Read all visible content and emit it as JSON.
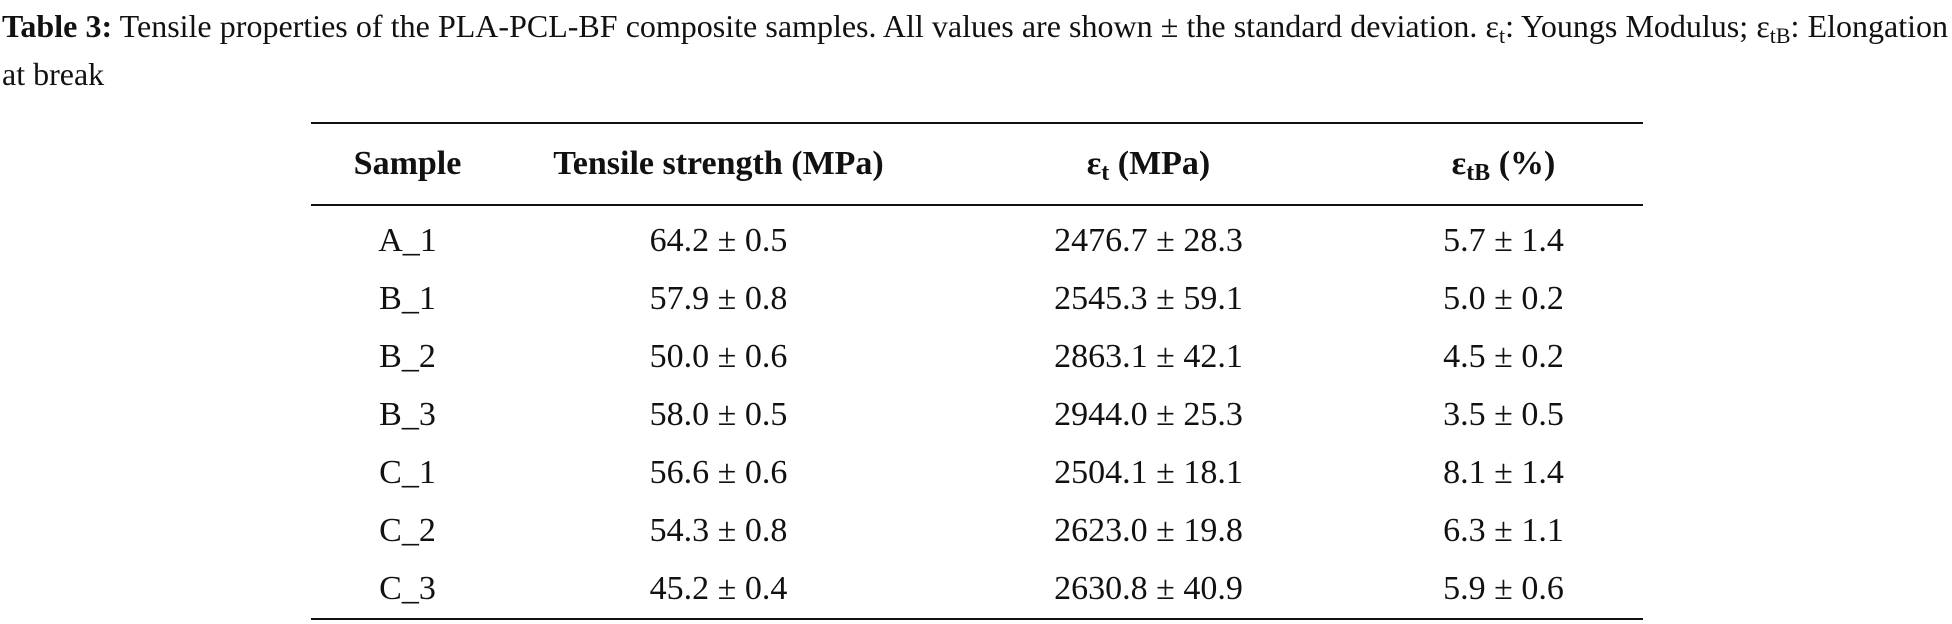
{
  "caption": {
    "label": "Table 3:",
    "text": " Tensile properties of the PLA-PCL-BF composite samples. All values are shown ± the standard deviation. ",
    "sym1": "ε",
    "sub1": "t",
    "def1": ": Youngs Modulus; ",
    "sym2": "ε",
    "sub2": "tB",
    "def2": ": Elongation at break"
  },
  "table": {
    "headers": {
      "sample": "Sample",
      "tensile": "Tensile strength (MPa)",
      "modulus_sym": "ε",
      "modulus_sub": "t",
      "modulus_unit": " (MPa)",
      "elong_sym": "ε",
      "elong_sub": "tB",
      "elong_unit": " (%)"
    },
    "rows": [
      {
        "sample": "A_1",
        "tensile": "64.2 ± 0.5",
        "modulus": "2476.7 ± 28.3",
        "elongation": "5.7 ± 1.4"
      },
      {
        "sample": "B_1",
        "tensile": "57.9 ± 0.8",
        "modulus": "2545.3 ± 59.1",
        "elongation": "5.0 ± 0.2"
      },
      {
        "sample": "B_2",
        "tensile": "50.0 ± 0.6",
        "modulus": "2863.1 ± 42.1",
        "elongation": "4.5 ± 0.2"
      },
      {
        "sample": "B_3",
        "tensile": "58.0 ± 0.5",
        "modulus": "2944.0 ± 25.3",
        "elongation": "3.5 ± 0.5"
      },
      {
        "sample": "C_1",
        "tensile": "56.6 ± 0.6",
        "modulus": "2504.1 ± 18.1",
        "elongation": "8.1 ± 1.4"
      },
      {
        "sample": "C_2",
        "tensile": "54.3 ± 0.8",
        "modulus": "2623.0 ± 19.8",
        "elongation": "6.3 ± 1.1"
      },
      {
        "sample": "C_3",
        "tensile": "45.2 ± 0.4",
        "modulus": "2630.8 ± 40.9",
        "elongation": "5.9 ± 0.6"
      }
    ]
  }
}
